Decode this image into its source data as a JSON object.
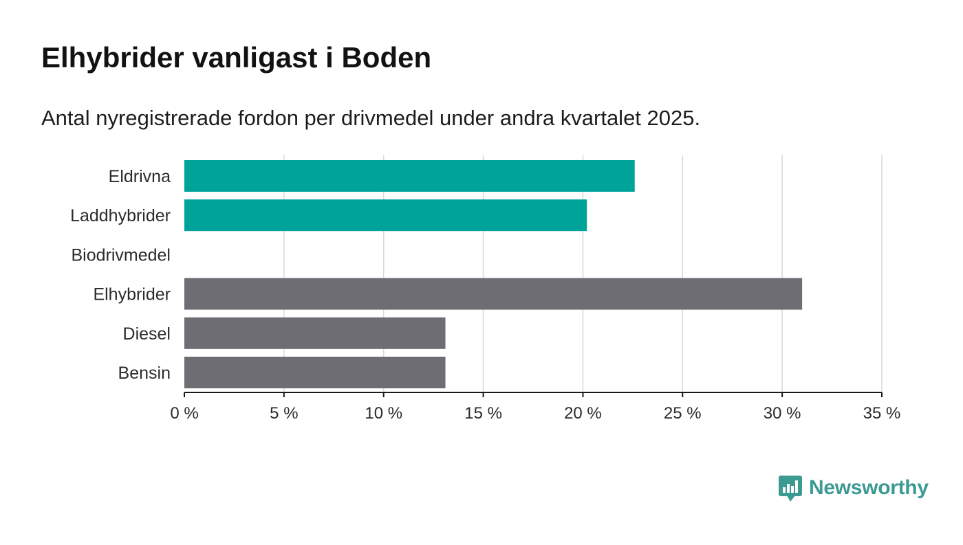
{
  "title": "Elhybrider vanligast i Boden",
  "subtitle": "Antal nyregistrerade fordon per drivmedel under andra kvartalet 2025.",
  "brand": {
    "name": "Newsworthy",
    "color": "#3b9a92",
    "icon": "bar-chart-speech-bubble-icon"
  },
  "colors": {
    "highlight": "#00a39a",
    "default": "#6e6d74",
    "grid": "#d9d9d9",
    "axis": "#1a1a1a"
  },
  "chart_data": {
    "type": "bar",
    "orientation": "horizontal",
    "categories": [
      "Eldrivna",
      "Laddhybrider",
      "Biodrivmedel",
      "Elhybrider",
      "Diesel",
      "Bensin"
    ],
    "values": [
      22.6,
      20.2,
      0,
      31.0,
      13.1,
      13.1
    ],
    "highlighted": [
      true,
      true,
      false,
      false,
      false,
      false
    ],
    "xlim": [
      0,
      35
    ],
    "xticks": [
      0,
      5,
      10,
      15,
      20,
      25,
      30,
      35
    ],
    "tick_suffix": " %",
    "xlabel": "",
    "ylabel": "",
    "grid": true,
    "legend": "none"
  }
}
